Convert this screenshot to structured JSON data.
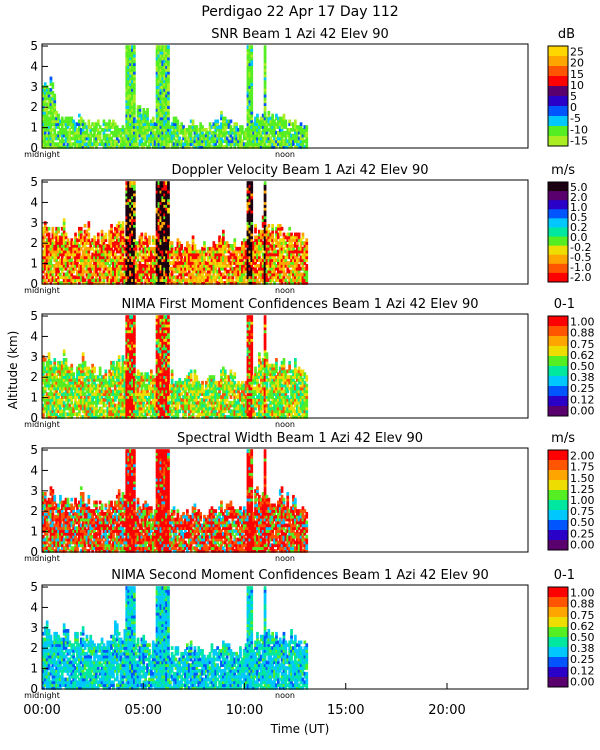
{
  "header": {
    "line1": "Perdigao   22 Apr 17 Day 112"
  },
  "chart_data": [
    {
      "type": "heatmap",
      "title": "SNR Beam 1 Azi  42 Elev 90",
      "unit": "dB",
      "yticks": [
        "0",
        "1",
        "2",
        "3",
        "4",
        "5"
      ],
      "ylim": [
        0,
        5.1
      ],
      "x_sublabels": [
        "midnight",
        "noon"
      ],
      "colorbar": [
        "25",
        "20",
        "15",
        "10",
        "5",
        "0",
        "-5",
        "-10",
        "-15"
      ],
      "colors": [
        "#ffd700",
        "#ffa500",
        "#ff5500",
        "#ff0000",
        "#5a006e",
        "#2a00c8",
        "#0055ff",
        "#00c8ff",
        "#55ee22",
        "#aaee22"
      ],
      "profile_top_km": [
        2.9,
        3.0,
        1.8,
        1.6,
        1.4,
        1.4,
        1.5,
        1.3,
        1.2,
        1.2,
        1.3,
        1.5,
        1.1,
        1.0,
        1.3,
        1.5,
        2.0,
        1.8,
        1.4,
        1.2,
        1.4,
        1.3,
        1.4,
        1.2,
        1.1,
        1.2,
        1.1,
        1.0,
        1.2,
        1.3,
        1.6,
        1.5,
        1.2,
        1.1,
        1.0,
        1.4,
        1.6,
        1.8,
        1.7,
        1.6,
        1.5,
        1.4,
        1.2,
        1.1,
        1.2
      ],
      "palette_mix": [
        0.55,
        0.25,
        0.12,
        0.08
      ],
      "palette_idx": [
        8,
        9,
        7,
        6
      ]
    },
    {
      "type": "heatmap",
      "title": "Doppler Velocity Beam 1 Azi  42 Elev 90",
      "unit": "m/s",
      "yticks": [
        "0",
        "1",
        "2",
        "3",
        "4",
        "5"
      ],
      "ylim": [
        0,
        5.1
      ],
      "x_sublabels": [
        "midnight",
        "noon"
      ],
      "colorbar": [
        "5.0",
        "2.0",
        "1.0",
        "0.5",
        "0.2",
        "0.0",
        "-0.2",
        "-0.5",
        "-1.0",
        "-2.0"
      ],
      "colors": [
        "#1a0010",
        "#5a006e",
        "#2a00c8",
        "#0055ff",
        "#00c8ff",
        "#00e8a0",
        "#55ee22",
        "#eedd00",
        "#ffa500",
        "#ff5500",
        "#ff0000"
      ],
      "profile_top_km": [
        2.9,
        2.8,
        2.7,
        2.9,
        2.6,
        2.5,
        2.8,
        2.7,
        2.4,
        2.3,
        2.2,
        2.5,
        2.9,
        2.7,
        2.4,
        2.2,
        2.4,
        2.3,
        2.1,
        2.0,
        2.2,
        2.1,
        2.0,
        1.9,
        2.0,
        2.1,
        1.9,
        1.8,
        2.0,
        2.1,
        2.3,
        2.2,
        2.0,
        1.9,
        2.0,
        2.3,
        2.8,
        2.9,
        2.7,
        2.6,
        2.8,
        2.5,
        2.6,
        2.4,
        2.2
      ],
      "palette_mix": [
        0.35,
        0.3,
        0.2,
        0.15
      ],
      "palette_idx": [
        10,
        8,
        7,
        6
      ]
    },
    {
      "type": "heatmap",
      "title": "NIMA First Moment Confidences Beam 1 Azi  42 Elev 90",
      "unit": "0-1",
      "yticks": [
        "0",
        "1",
        "2",
        "3",
        "4",
        "5"
      ],
      "ylim": [
        0,
        5.1
      ],
      "x_sublabels": [
        "midnight",
        "noon"
      ],
      "colorbar": [
        "1.00",
        "0.88",
        "0.75",
        "0.62",
        "0.50",
        "0.38",
        "0.25",
        "0.12",
        "0.00"
      ],
      "colors": [
        "#ff0000",
        "#ff5500",
        "#ffa500",
        "#eedd00",
        "#55ee22",
        "#00e8a0",
        "#00c8ff",
        "#0055ff",
        "#2a00c8",
        "#5a006e"
      ],
      "profile_top_km": [
        2.9,
        2.8,
        2.7,
        2.9,
        2.6,
        2.5,
        2.8,
        2.7,
        2.4,
        2.3,
        2.2,
        2.5,
        2.9,
        2.7,
        2.4,
        2.2,
        2.4,
        2.3,
        2.1,
        2.0,
        2.2,
        2.1,
        2.0,
        1.9,
        2.0,
        2.1,
        1.9,
        1.8,
        2.0,
        2.1,
        2.3,
        2.2,
        2.0,
        1.9,
        2.0,
        2.3,
        2.8,
        2.9,
        2.7,
        2.6,
        2.8,
        2.5,
        2.6,
        2.4,
        2.2
      ],
      "palette_mix": [
        0.35,
        0.3,
        0.2,
        0.15
      ],
      "palette_idx": [
        4,
        3,
        5,
        1
      ]
    },
    {
      "type": "heatmap",
      "title": "Spectral Width Beam 1 Azi  42 Elev 90",
      "unit": "m/s",
      "yticks": [
        "0",
        "1",
        "2",
        "3",
        "4",
        "5"
      ],
      "ylim": [
        0,
        5.1
      ],
      "x_sublabels": [
        "midnight",
        "noon"
      ],
      "colorbar": [
        "2.00",
        "1.75",
        "1.50",
        "1.25",
        "1.00",
        "0.75",
        "0.50",
        "0.25",
        "0.00"
      ],
      "colors": [
        "#ff0000",
        "#ff5500",
        "#ffa500",
        "#eedd00",
        "#55ee22",
        "#00e8a0",
        "#00c8ff",
        "#0055ff",
        "#2a00c8",
        "#5a006e"
      ],
      "profile_top_km": [
        2.9,
        2.8,
        2.7,
        2.9,
        2.6,
        2.5,
        2.8,
        2.7,
        2.4,
        2.3,
        2.2,
        2.5,
        2.9,
        2.7,
        2.4,
        2.2,
        2.4,
        2.3,
        2.1,
        2.0,
        2.2,
        2.1,
        2.0,
        1.9,
        2.0,
        2.1,
        1.9,
        1.8,
        2.0,
        2.1,
        2.3,
        2.2,
        2.0,
        1.9,
        2.0,
        2.3,
        2.8,
        2.9,
        2.7,
        2.6,
        2.8,
        2.5,
        2.6,
        2.4,
        2.2
      ],
      "palette_mix": [
        0.35,
        0.3,
        0.2,
        0.15
      ],
      "palette_idx": [
        0,
        1,
        4,
        6
      ]
    },
    {
      "type": "heatmap",
      "title": "NIMA Second Moment Confidences Beam 1 Azi  42 Elev 90",
      "unit": "0-1",
      "yticks": [
        "0",
        "1",
        "2",
        "3",
        "4",
        "5"
      ],
      "ylim": [
        0,
        5.1
      ],
      "x_sublabels": [
        "midnight",
        "noon"
      ],
      "colorbar": [
        "1.00",
        "0.88",
        "0.75",
        "0.62",
        "0.50",
        "0.38",
        "0.25",
        "0.12",
        "0.00"
      ],
      "colors": [
        "#ff0000",
        "#ff5500",
        "#ffa500",
        "#eedd00",
        "#55ee22",
        "#00e8a0",
        "#00c8ff",
        "#0055ff",
        "#2a00c8",
        "#5a006e"
      ],
      "profile_top_km": [
        2.9,
        2.8,
        2.7,
        2.9,
        2.6,
        2.5,
        2.8,
        2.7,
        2.4,
        2.3,
        2.2,
        2.5,
        2.9,
        2.7,
        2.4,
        2.2,
        2.4,
        2.3,
        2.1,
        2.0,
        2.2,
        2.1,
        2.0,
        1.9,
        2.0,
        2.1,
        1.9,
        1.8,
        2.0,
        2.1,
        2.3,
        2.2,
        2.0,
        1.9,
        2.0,
        2.3,
        2.8,
        2.9,
        2.7,
        2.6,
        2.8,
        2.5,
        2.6,
        2.4,
        2.2
      ],
      "palette_mix": [
        0.4,
        0.35,
        0.15,
        0.1
      ],
      "palette_idx": [
        6,
        5,
        7,
        4
      ]
    }
  ],
  "axes": {
    "ylabel": "Altitude (km)",
    "xlabel": "Time (UT)",
    "xticks": [
      "00:00",
      "05:00",
      "10:00",
      "15:00",
      "20:00"
    ],
    "x_hours": [
      0,
      5,
      10,
      15,
      20
    ],
    "x_range_hours": [
      0,
      24
    ],
    "data_end_hour": 13.1,
    "tower_hours": [
      [
        4.1,
        4.5
      ],
      [
        5.6,
        6.2
      ],
      [
        10.1,
        10.3
      ],
      [
        10.9,
        11.0
      ]
    ]
  }
}
